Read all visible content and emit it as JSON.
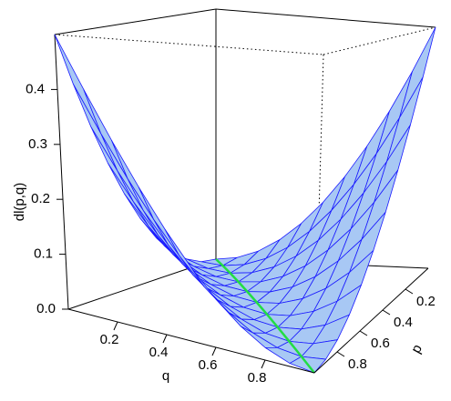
{
  "chart_data": {
    "type": "surface",
    "xlabel": "q",
    "ylabel": "p",
    "zlabel": "dl(p,q)",
    "x": [
      0,
      0.1,
      0.2,
      0.3,
      0.4,
      0.5,
      0.6,
      0.7,
      0.8,
      0.9,
      1
    ],
    "y": [
      0,
      0.1,
      0.2,
      0.3,
      0.4,
      0.5,
      0.6,
      0.7,
      0.8,
      0.9,
      1
    ],
    "z": [
      [
        0,
        0.005,
        0.02,
        0.045,
        0.08,
        0.125,
        0.18,
        0.245,
        0.32,
        0.405,
        0.5
      ],
      [
        0.005,
        0,
        0.005,
        0.02,
        0.045,
        0.08,
        0.125,
        0.18,
        0.245,
        0.32,
        0.405
      ],
      [
        0.02,
        0.005,
        0,
        0.005,
        0.02,
        0.045,
        0.08,
        0.125,
        0.18,
        0.245,
        0.32
      ],
      [
        0.045,
        0.02,
        0.005,
        0,
        0.005,
        0.02,
        0.045,
        0.08,
        0.125,
        0.18,
        0.245
      ],
      [
        0.08,
        0.045,
        0.02,
        0.005,
        0,
        0.005,
        0.02,
        0.045,
        0.08,
        0.125,
        0.18
      ],
      [
        0.125,
        0.08,
        0.045,
        0.02,
        0.005,
        0,
        0.005,
        0.02,
        0.045,
        0.08,
        0.125
      ],
      [
        0.18,
        0.125,
        0.08,
        0.045,
        0.02,
        0.005,
        0,
        0.005,
        0.02,
        0.045,
        0.08
      ],
      [
        0.245,
        0.18,
        0.125,
        0.08,
        0.045,
        0.02,
        0.005,
        0,
        0.005,
        0.02,
        0.045
      ],
      [
        0.32,
        0.245,
        0.18,
        0.125,
        0.08,
        0.045,
        0.02,
        0.005,
        0,
        0.005,
        0.02
      ],
      [
        0.405,
        0.32,
        0.245,
        0.18,
        0.125,
        0.08,
        0.045,
        0.02,
        0.005,
        0,
        0.005
      ],
      [
        0.5,
        0.405,
        0.32,
        0.245,
        0.18,
        0.125,
        0.08,
        0.045,
        0.02,
        0.005,
        0
      ]
    ],
    "xlim": [
      0,
      1
    ],
    "ylim": [
      0,
      1
    ],
    "zlim": [
      0,
      0.5
    ],
    "xticks": [
      0.2,
      0.4,
      0.6,
      0.8
    ],
    "yticks": [
      0.2,
      0.4,
      0.6,
      0.8
    ],
    "zticks": [
      {
        "value": 0,
        "label": "0.0"
      },
      0.1,
      0.2,
      0.3,
      0.4
    ],
    "surface_color": "#a8c8f4",
    "line_color": "#1a1aff",
    "highlight_color": "#22dd44"
  }
}
